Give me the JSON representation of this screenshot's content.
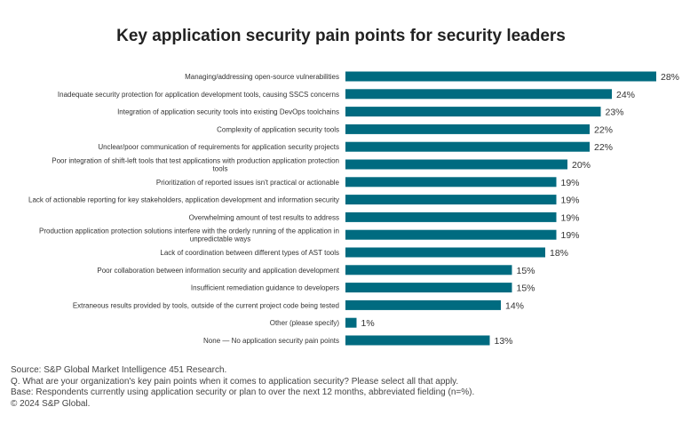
{
  "chart_data": {
    "type": "bar",
    "orientation": "horizontal",
    "title": "Key application security pain points for security leaders",
    "categories": [
      "Managing/addressing open-source vulnerabilities",
      "Inadequate security protection for application development tools, causing SSCS concerns",
      "Integration of application security tools into existing DevOps toolchains",
      "Complexity of application security tools",
      "Unclear/poor communication of requirements for application security projects",
      "Poor integration of shift-left tools that test applications with production application protection tools",
      "Prioritization of reported issues isn't practical or actionable",
      "Lack of actionable reporting for key stakeholders, application development and information security",
      "Overwhelming amount of test results to address",
      "Production application protection solutions interfere with the orderly running of the application in unpredictable ways",
      "Lack of coordination between different types of AST tools",
      "Poor collaboration between information security and application development",
      "Insufficient remediation guidance to developers",
      "Extraneous results provided by tools, outside of the current project code being tested",
      "Other (please specify)",
      "None — No application security pain points"
    ],
    "values": [
      28,
      24,
      23,
      22,
      22,
      20,
      19,
      19,
      19,
      19,
      18,
      15,
      15,
      14,
      1,
      13
    ],
    "value_suffix": "%",
    "xlim": [
      0,
      28
    ],
    "grid": false,
    "bar_color": "#006b80"
  },
  "notes": [
    "Source: S&P Global Market Intelligence 451 Research.",
    "Q. What are your organization's key pain points when it comes to application security? Please select all that apply.",
    "Base: Respondents currently using application security or plan to over the next 12 months, abbreviated fielding  (n=%).",
    "© 2024 S&P Global."
  ]
}
